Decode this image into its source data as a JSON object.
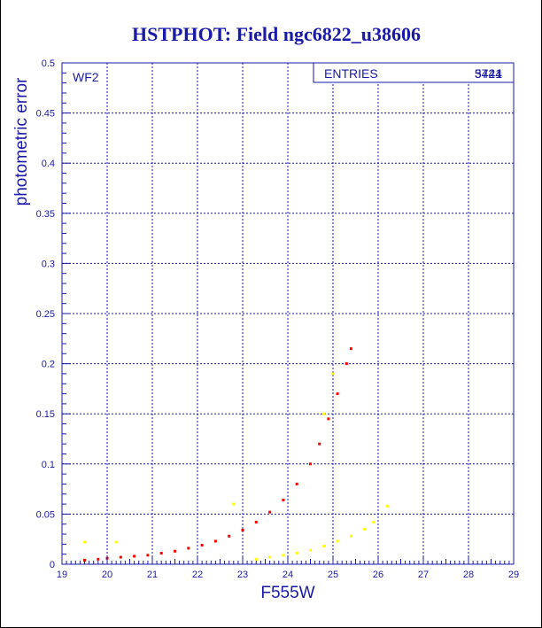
{
  "chart_data": {
    "type": "scatter",
    "title": "HSTPHOT: Field ngc6822_u38606",
    "xlabel": "F555W",
    "ylabel": "photometric error",
    "xlim": [
      19,
      29
    ],
    "ylim": [
      0,
      0.5
    ],
    "xticks": [
      "19",
      "20",
      "21",
      "22",
      "23",
      "24",
      "25",
      "26",
      "27",
      "28",
      "29"
    ],
    "yticks": [
      "0",
      "0.05",
      "0.1",
      "0.15",
      "0.2",
      "0.25",
      "0.3",
      "0.35",
      "0.4",
      "0.45",
      "0.5"
    ],
    "panel_label": "WF2",
    "stats_box": {
      "label": "ENTRIES",
      "values": [
        "5421",
        "3744"
      ]
    },
    "grid": true,
    "series": [
      {
        "color": "#ff0000",
        "points": [
          [
            19.5,
            0.004
          ],
          [
            19.8,
            0.005
          ],
          [
            20.0,
            0.006
          ],
          [
            20.3,
            0.007
          ],
          [
            20.6,
            0.008
          ],
          [
            20.9,
            0.009
          ],
          [
            21.2,
            0.011
          ],
          [
            21.5,
            0.013
          ],
          [
            21.8,
            0.016
          ],
          [
            22.1,
            0.019
          ],
          [
            22.4,
            0.023
          ],
          [
            22.7,
            0.028
          ],
          [
            23.0,
            0.034
          ],
          [
            23.3,
            0.042
          ],
          [
            23.6,
            0.052
          ],
          [
            23.9,
            0.064
          ],
          [
            24.2,
            0.08
          ],
          [
            24.5,
            0.1
          ],
          [
            24.7,
            0.12
          ],
          [
            24.9,
            0.145
          ],
          [
            25.1,
            0.17
          ],
          [
            25.3,
            0.2
          ],
          [
            25.4,
            0.215
          ]
        ]
      },
      {
        "color": "#ffff00",
        "points": [
          [
            23.3,
            0.005
          ],
          [
            23.6,
            0.007
          ],
          [
            23.9,
            0.009
          ],
          [
            24.2,
            0.011
          ],
          [
            24.5,
            0.014
          ],
          [
            24.8,
            0.018
          ],
          [
            25.1,
            0.023
          ],
          [
            25.4,
            0.028
          ],
          [
            25.7,
            0.035
          ],
          [
            25.9,
            0.042
          ],
          [
            19.5,
            0.022
          ],
          [
            20.2,
            0.022
          ],
          [
            22.8,
            0.06
          ],
          [
            24.8,
            0.15
          ],
          [
            25.0,
            0.19
          ],
          [
            26.2,
            0.058
          ]
        ]
      }
    ]
  }
}
